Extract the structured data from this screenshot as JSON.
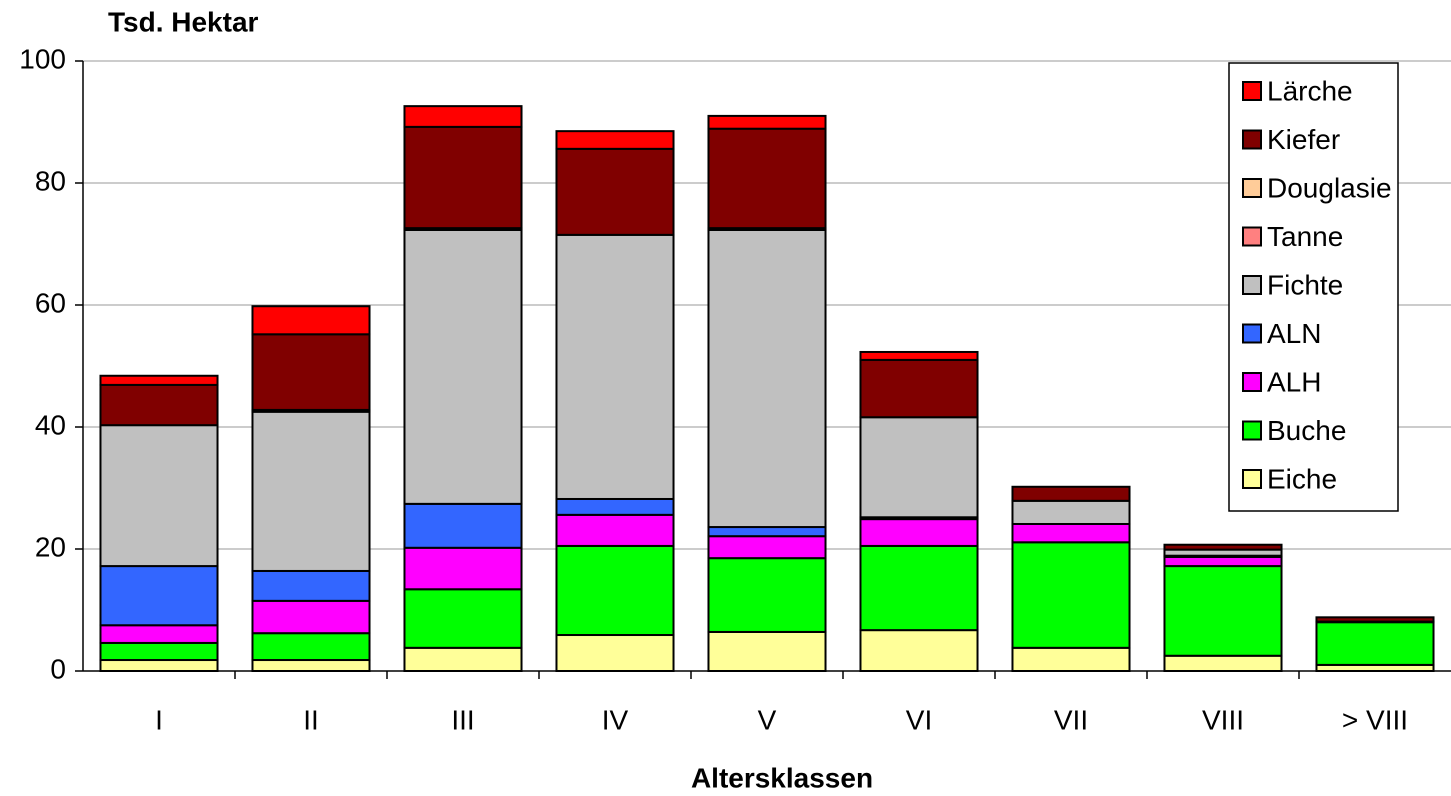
{
  "chart_data": {
    "type": "stacked_bar",
    "y_label": "Tsd. Hektar",
    "x_label": "Altersklassen",
    "categories": [
      "I",
      "II",
      "III",
      "IV",
      "V",
      "VI",
      "VII",
      "VIII",
      "> VIII"
    ],
    "series": [
      {
        "name": "Eiche",
        "color": "#ffff99",
        "values": [
          1.8,
          1.8,
          3.8,
          5.9,
          6.4,
          6.7,
          3.8,
          2.5,
          1.0
        ]
      },
      {
        "name": "Buche",
        "color": "#00ff00",
        "values": [
          2.8,
          4.4,
          9.6,
          14.6,
          12.1,
          13.8,
          17.3,
          14.7,
          7.0
        ]
      },
      {
        "name": "ALH",
        "color": "#ff00ff",
        "values": [
          2.9,
          5.3,
          6.8,
          5.1,
          3.6,
          4.4,
          3.0,
          1.5,
          0.1
        ]
      },
      {
        "name": "ALN",
        "color": "#3366ff",
        "values": [
          9.7,
          4.9,
          7.2,
          2.6,
          1.5,
          0.3,
          0,
          0.2,
          0
        ]
      },
      {
        "name": "Fichte",
        "color": "#c0c0c0",
        "values": [
          23.1,
          26.1,
          44.9,
          43.3,
          48.7,
          16.4,
          3.8,
          1.0,
          0
        ]
      },
      {
        "name": "Tanne",
        "color": "#ff8080",
        "values": [
          0,
          0.3,
          0.3,
          0,
          0.3,
          0,
          0,
          0,
          0
        ]
      },
      {
        "name": "Douglasie",
        "color": "#ffcc99",
        "values": [
          0,
          0,
          0,
          0,
          0,
          0,
          0,
          0,
          0
        ]
      },
      {
        "name": "Kiefer",
        "color": "#800000",
        "values": [
          6.6,
          12.4,
          16.6,
          14.1,
          16.3,
          9.4,
          2.3,
          0.8,
          0.7
        ]
      },
      {
        "name": "Lärche",
        "color": "#ff0000",
        "values": [
          1.5,
          4.6,
          3.4,
          2.9,
          2.1,
          1.3,
          0,
          0,
          0
        ]
      }
    ],
    "ylim": [
      0,
      100
    ],
    "yticks": [
      0,
      20,
      40,
      60,
      80,
      100
    ],
    "grid": true,
    "legend": "upper right"
  }
}
